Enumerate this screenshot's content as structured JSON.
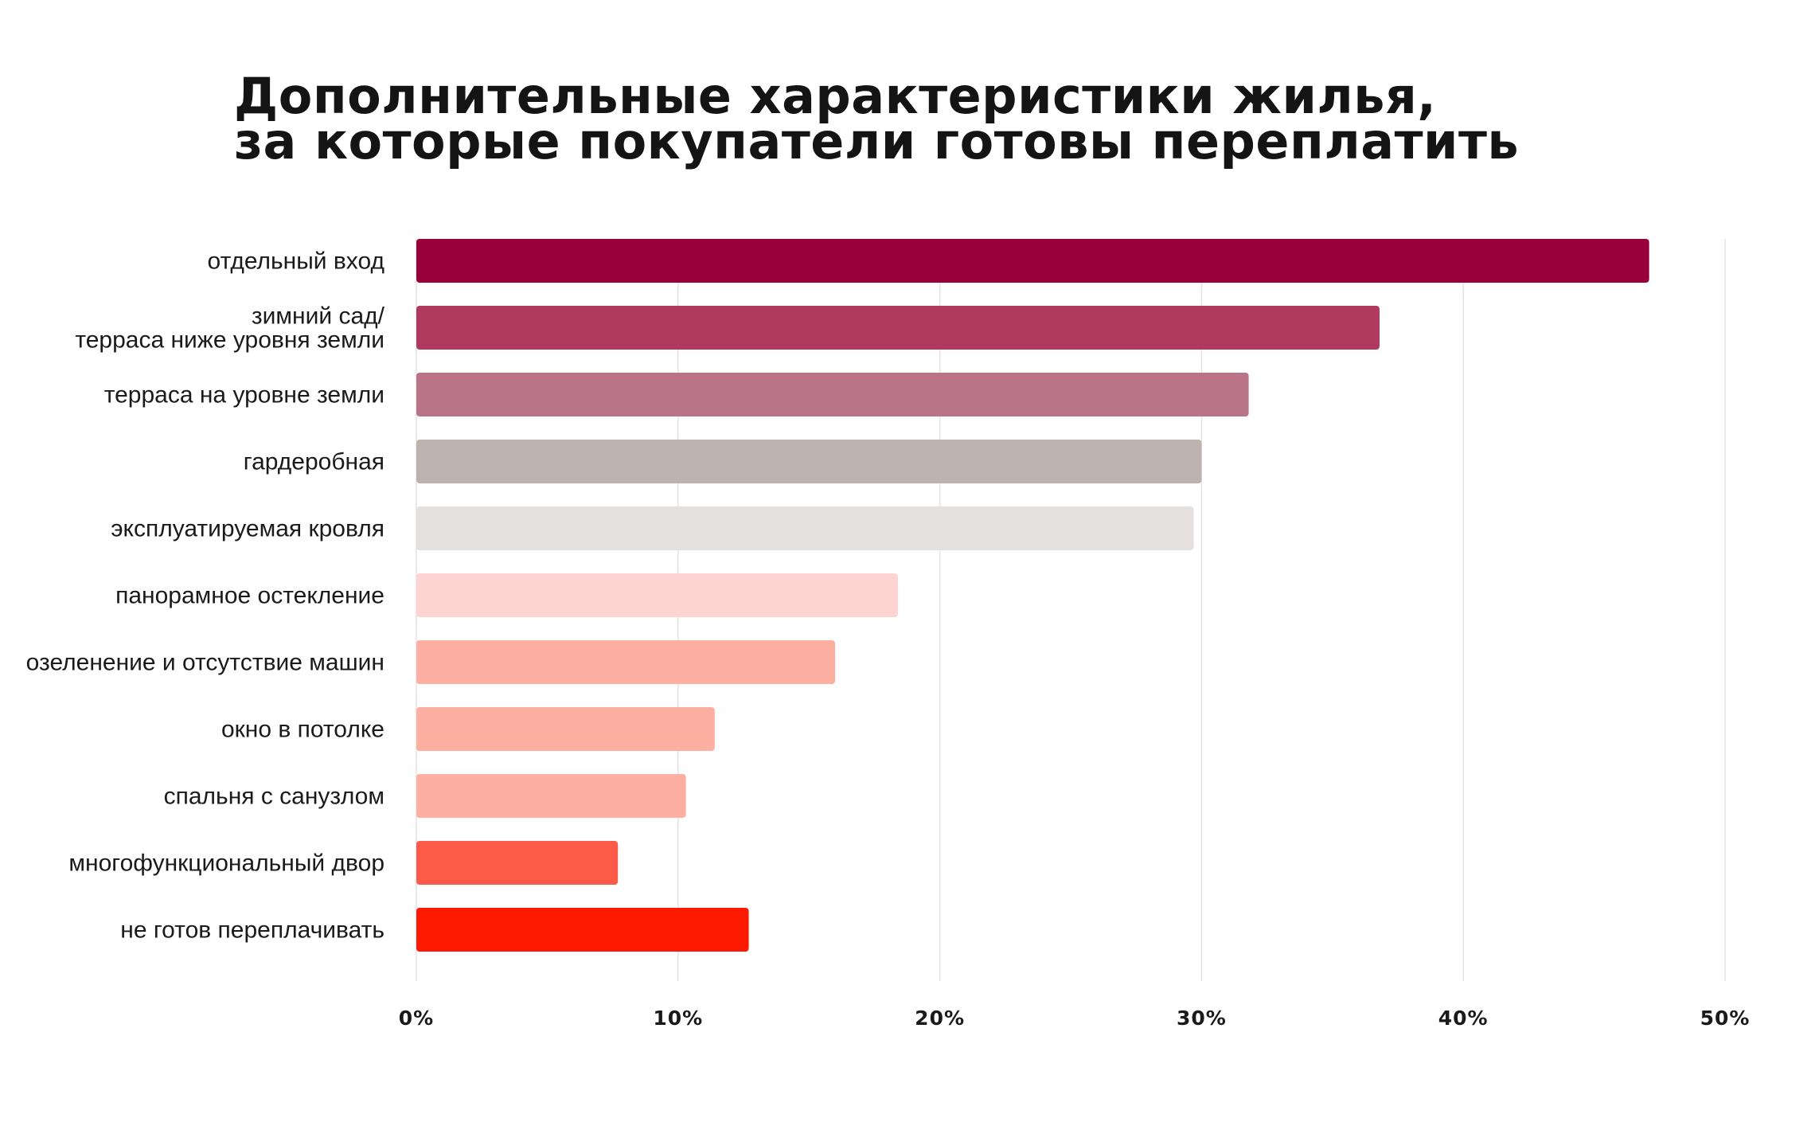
{
  "title": {
    "line1": "Дополнительные характеристики жилья,",
    "line2": "за которые покупатели готовы переплатить"
  },
  "chart_data": {
    "type": "bar",
    "orientation": "horizontal",
    "title": "Дополнительные характеристики жилья, за которые покупатели готовы переплатить",
    "categories": [
      [
        "отдельный вход"
      ],
      [
        "зимний сад/",
        "терраса ниже уровня земли"
      ],
      [
        "терраса на уровне земли"
      ],
      [
        "гардеробная"
      ],
      [
        "эксплуатируемая кровля"
      ],
      [
        "панорамное остекление"
      ],
      [
        "озеленение и отсутствие машин"
      ],
      [
        "окно в потолке"
      ],
      [
        "спальня с санузлом"
      ],
      [
        "многофункциональный двор"
      ],
      [
        "не готов переплачивать"
      ]
    ],
    "values": [
      47.1,
      36.8,
      31.8,
      30.0,
      29.7,
      18.4,
      16.0,
      11.4,
      10.3,
      7.7,
      12.7
    ],
    "colors": [
      "#99003b",
      "#b03a5f",
      "#b97487",
      "#bdb3ae",
      "#e4e0dd",
      "#fed4d3",
      "#fdafa1",
      "#fdafa1",
      "#fdafa1",
      "#fd5a4a",
      "#fd1a00"
    ],
    "xlim": [
      0,
      50
    ],
    "xticks": [
      0,
      10,
      20,
      30,
      40,
      50
    ],
    "xtick_labels": [
      "0%",
      "10%",
      "20%",
      "30%",
      "40%",
      "50%"
    ],
    "grid": true,
    "xlabel": "",
    "ylabel": ""
  }
}
